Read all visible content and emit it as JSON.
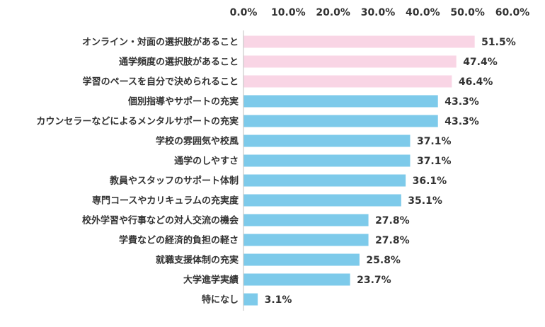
{
  "chart_data": {
    "type": "bar",
    "orientation": "horizontal",
    "categories": [
      "オンライン・対面の選択肢があること",
      "通学頻度の選択肢があること",
      "学習のペースを自分で決められること",
      "個別指導やサポートの充実",
      "カウンセラーなどによるメンタルサポートの充実",
      "学校の雰囲気や校風",
      "通学のしやすさ",
      "教員やスタッフのサポート体制",
      "専門コースやカリキュラムの充実度",
      "校外学習や行事などの対人交流の機会",
      "学費などの経済的負担の軽さ",
      "就職支援体制の充実",
      "大学進学実績",
      "特になし"
    ],
    "values": [
      51.5,
      47.4,
      46.4,
      43.3,
      43.3,
      37.1,
      37.1,
      36.1,
      35.1,
      27.8,
      27.8,
      25.8,
      23.7,
      3.1
    ],
    "value_labels": [
      "51.5%",
      "47.4%",
      "46.4%",
      "43.3%",
      "43.3%",
      "37.1%",
      "37.1%",
      "36.1%",
      "35.1%",
      "27.8%",
      "27.8%",
      "25.8%",
      "23.7%",
      "3.1%"
    ],
    "bar_colors": [
      "#f9d5e5",
      "#f9d5e5",
      "#f9d5e5",
      "#7dcaea",
      "#7dcaea",
      "#7dcaea",
      "#7dcaea",
      "#7dcaea",
      "#7dcaea",
      "#7dcaea",
      "#7dcaea",
      "#7dcaea",
      "#7dcaea",
      "#7dcaea"
    ],
    "xlim": [
      0,
      60
    ],
    "x_ticks": [
      "0.0%",
      "10.0%",
      "20.0%",
      "30.0%",
      "40.0%",
      "50.0%",
      "60.0%"
    ],
    "x_axis_position": "top",
    "grid": false,
    "legend": "none",
    "axis_line_color": "#bfbfbf",
    "title": "",
    "xlabel": "",
    "ylabel": ""
  }
}
